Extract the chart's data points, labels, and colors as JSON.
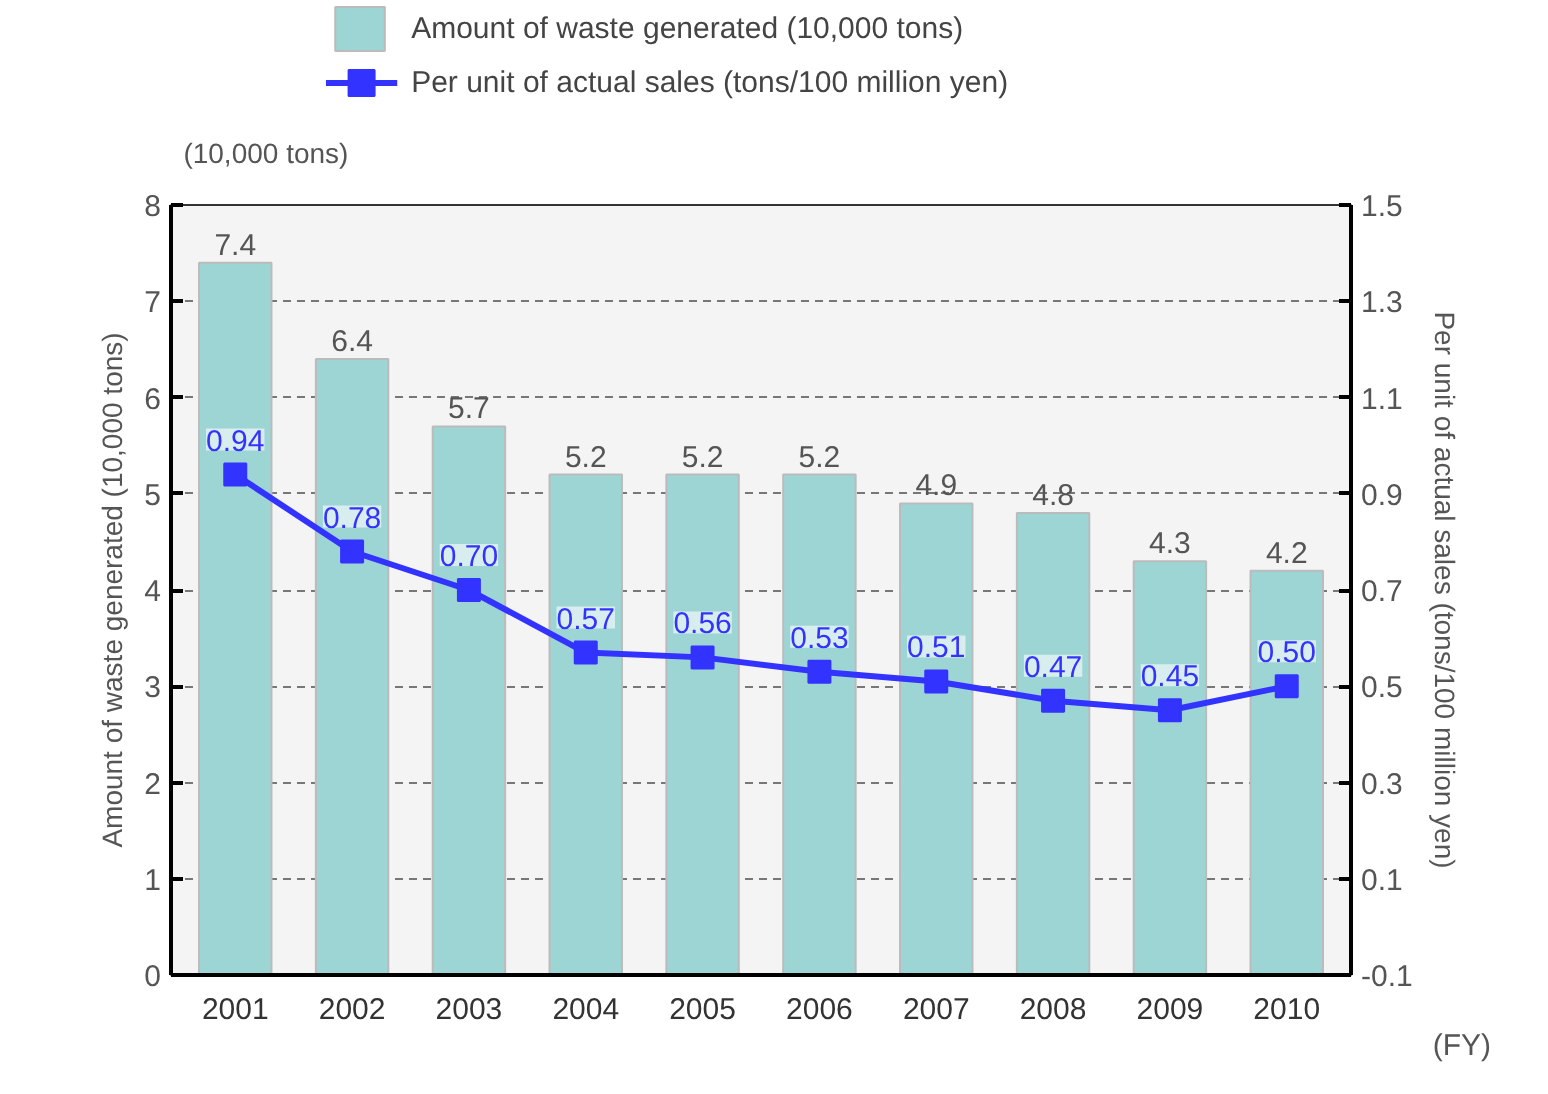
{
  "chart_data": {
    "type": "bar",
    "categories": [
      "2001",
      "2002",
      "2003",
      "2004",
      "2005",
      "2006",
      "2007",
      "2008",
      "2009",
      "2010"
    ],
    "series": [
      {
        "name": "Amount of waste generated (10,000 tons)",
        "color": "#9dd5d5",
        "values": [
          7.4,
          6.4,
          5.7,
          5.2,
          5.2,
          5.2,
          4.9,
          4.8,
          4.3,
          4.2
        ],
        "value_labels": [
          "7.4",
          "6.4",
          "5.7",
          "5.2",
          "5.2",
          "5.2",
          "4.9",
          "4.8",
          "4.3",
          "4.2"
        ]
      },
      {
        "name": "Per unit of actual sales (tons/100 million yen)",
        "type": "line",
        "axis": "y2",
        "color": "#3333ff",
        "marker": "square",
        "values": [
          0.94,
          0.78,
          0.7,
          0.57,
          0.56,
          0.53,
          0.51,
          0.47,
          0.45,
          0.5
        ],
        "value_labels": [
          "0.94",
          "0.78",
          "0.70",
          "0.57",
          "0.56",
          "0.53",
          "0.51",
          "0.47",
          "0.45",
          "0.50"
        ]
      }
    ],
    "ylabel": "Amount of waste generated (10,000 tons)",
    "y2label": "Per unit of actual sales (tons/100 million yen)",
    "ylim": [
      0,
      8
    ],
    "yticks": [
      0,
      1,
      2,
      3,
      4,
      5,
      6,
      7,
      8
    ],
    "y2lim": [
      -0.1,
      1.5
    ],
    "y2ticks": [
      -0.1,
      0.1,
      0.3,
      0.5,
      0.7,
      0.9,
      1.1,
      1.3,
      1.5
    ],
    "annotations": [
      "(10,000 tons)",
      "(FY)"
    ],
    "grid": "y",
    "legend": "top"
  }
}
